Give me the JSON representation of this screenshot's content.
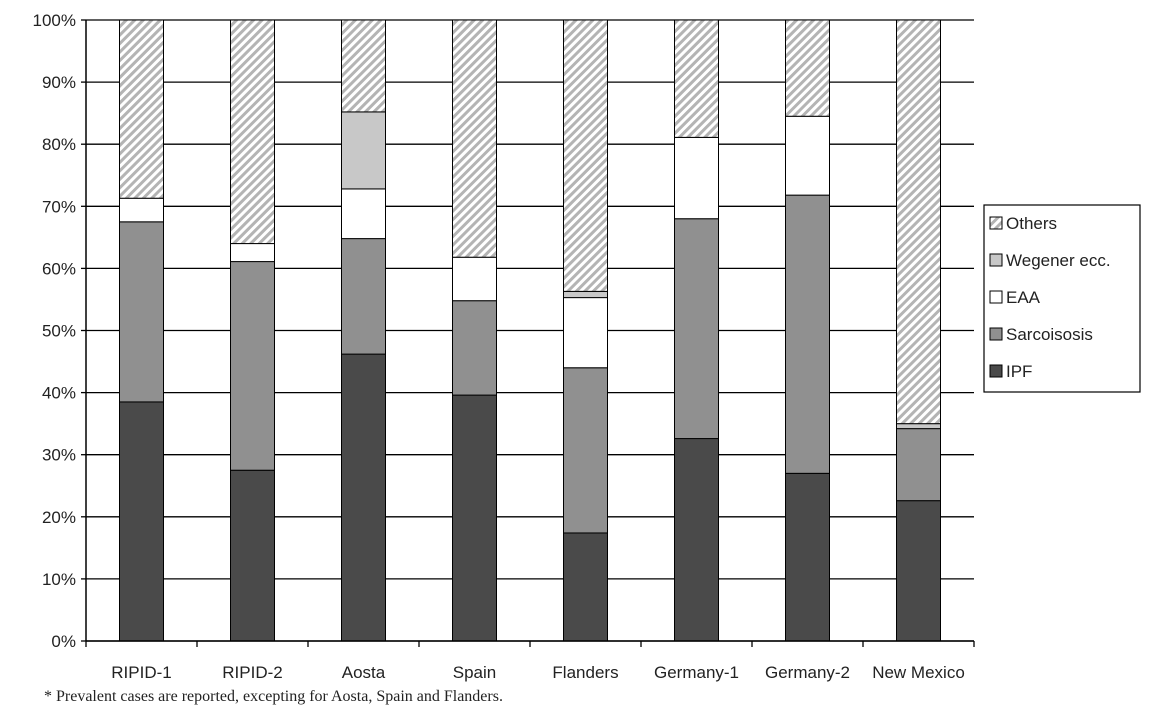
{
  "chart_data": {
    "type": "bar",
    "stacked": true,
    "percent": true,
    "categories": [
      "RIPID-1",
      "RIPID-2",
      "Aosta",
      "Spain",
      "Flanders",
      "Germany-1",
      "Germany-2",
      "New Mexico"
    ],
    "series": [
      {
        "name": "IPF",
        "color": "#4a4a4a",
        "pattern": "solid",
        "values": [
          38.5,
          27.5,
          46.2,
          39.6,
          17.4,
          32.6,
          27.0,
          22.6
        ]
      },
      {
        "name": "Sarcoisosis",
        "color": "#909090",
        "pattern": "solid",
        "values": [
          29.0,
          33.6,
          18.6,
          15.2,
          26.6,
          35.4,
          44.8,
          11.6
        ]
      },
      {
        "name": "EAA",
        "color": "#ffffff",
        "pattern": "solid",
        "values": [
          3.8,
          2.9,
          8.0,
          7.0,
          11.3,
          13.1,
          12.7,
          0.0
        ]
      },
      {
        "name": "Wegener ecc.",
        "color": "#c8c8c8",
        "pattern": "solid",
        "values": [
          0.0,
          0.0,
          12.4,
          0.0,
          1.0,
          0.0,
          0.0,
          0.8
        ]
      },
      {
        "name": "Others",
        "color": "#d6d6d6",
        "pattern": "hatched",
        "values": [
          28.7,
          36.0,
          14.8,
          38.2,
          43.7,
          18.9,
          15.5,
          65.0
        ]
      }
    ],
    "ylim": [
      0,
      100
    ],
    "yticks": [
      "0%",
      "10%",
      "20%",
      "30%",
      "40%",
      "50%",
      "60%",
      "70%",
      "80%",
      "90%",
      "100%"
    ],
    "legend_order": [
      "Others",
      "Wegener ecc.",
      "EAA",
      "Sarcoisosis",
      "IPF"
    ],
    "legend_position": "right",
    "grid": "horizontal",
    "xlabel": "",
    "ylabel": "",
    "footnote": "* Prevalent cases are reported, excepting for Aosta, Spain and Flanders."
  }
}
